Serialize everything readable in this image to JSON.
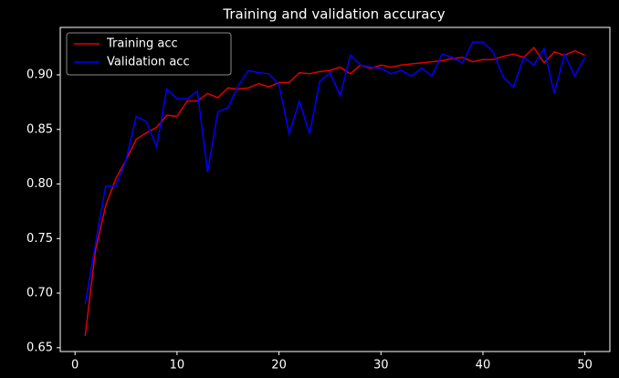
{
  "chart_data": {
    "type": "line",
    "title": "Training and validation accuracy",
    "x": [
      1,
      2,
      3,
      4,
      5,
      6,
      7,
      8,
      9,
      10,
      11,
      12,
      13,
      14,
      15,
      16,
      17,
      18,
      19,
      20,
      21,
      22,
      23,
      24,
      25,
      26,
      27,
      28,
      29,
      30,
      31,
      32,
      33,
      34,
      35,
      36,
      37,
      38,
      39,
      40,
      41,
      42,
      43,
      44,
      45,
      46,
      47,
      48,
      49,
      50
    ],
    "series": [
      {
        "name": "Training acc",
        "color": "#e00000",
        "values": [
          0.661,
          0.739,
          0.78,
          0.805,
          0.822,
          0.841,
          0.847,
          0.852,
          0.863,
          0.862,
          0.876,
          0.876,
          0.883,
          0.879,
          0.888,
          0.887,
          0.888,
          0.892,
          0.889,
          0.893,
          0.893,
          0.902,
          0.901,
          0.903,
          0.904,
          0.907,
          0.901,
          0.909,
          0.906,
          0.909,
          0.907,
          0.909,
          0.91,
          0.911,
          0.912,
          0.913,
          0.915,
          0.916,
          0.912,
          0.914,
          0.914,
          0.917,
          0.919,
          0.916,
          0.925,
          0.911,
          0.921,
          0.918,
          0.922,
          0.918
        ]
      },
      {
        "name": "Validation acc",
        "color": "#0000ff",
        "values": [
          0.69,
          0.745,
          0.798,
          0.798,
          0.822,
          0.862,
          0.857,
          0.834,
          0.887,
          0.878,
          0.878,
          0.885,
          0.811,
          0.866,
          0.87,
          0.89,
          0.904,
          0.902,
          0.901,
          0.891,
          0.846,
          0.876,
          0.846,
          0.894,
          0.902,
          0.881,
          0.918,
          0.909,
          0.907,
          0.906,
          0.901,
          0.904,
          0.899,
          0.906,
          0.899,
          0.919,
          0.916,
          0.911,
          0.93,
          0.93,
          0.921,
          0.898,
          0.889,
          0.916,
          0.909,
          0.924,
          0.883,
          0.919,
          0.899,
          0.916
        ]
      }
    ],
    "xlim": [
      -1.45,
      52.45
    ],
    "xticks": [
      0,
      10,
      20,
      30,
      40,
      50
    ],
    "ylim": [
      0.6465,
      0.9435
    ],
    "yticks": [
      0.65,
      {
        "value": 0.7,
        "label": "0.70"
      },
      0.75,
      {
        "value": 0.8,
        "label": "0.80"
      },
      0.85,
      {
        "value": 0.9,
        "label": "0.90"
      }
    ],
    "legend": "upper left",
    "grid": false
  }
}
